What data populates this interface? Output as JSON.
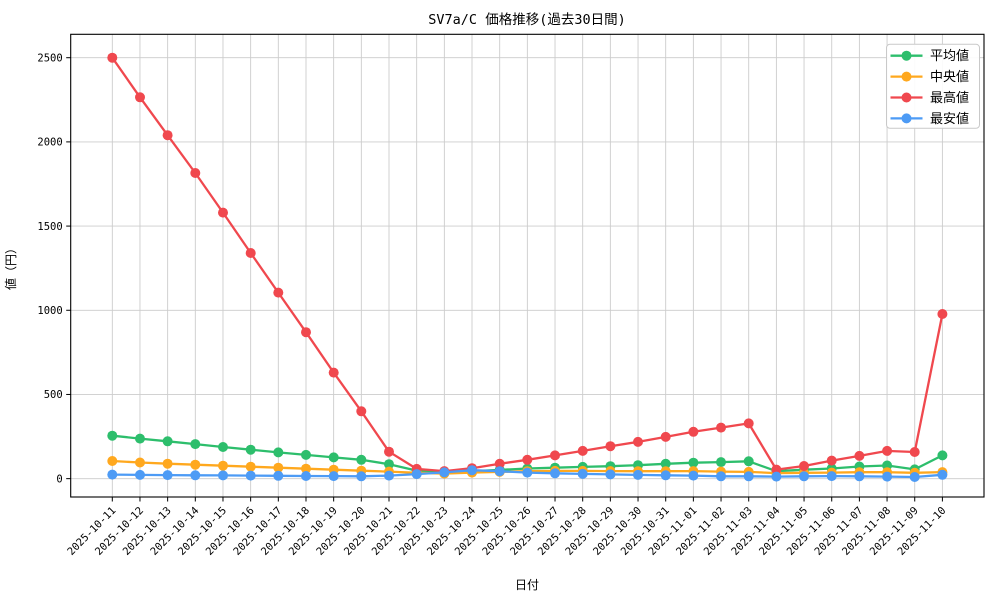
{
  "title": "SV7a/C 価格推移(過去30日間)",
  "chart_data": {
    "type": "line",
    "title": "SV7a/C 価格推移(過去30日間)",
    "xlabel": "日付",
    "ylabel": "値（円）",
    "grid": true,
    "legend_position": "top-right",
    "ylim": [
      -109,
      2639
    ],
    "yticks": [
      0,
      500,
      1000,
      1500,
      2000,
      2500
    ],
    "categories": [
      "2025-10-11",
      "2025-10-12",
      "2025-10-13",
      "2025-10-14",
      "2025-10-15",
      "2025-10-16",
      "2025-10-17",
      "2025-10-18",
      "2025-10-19",
      "2025-10-20",
      "2025-10-21",
      "2025-10-22",
      "2025-10-23",
      "2025-10-24",
      "2025-10-25",
      "2025-10-26",
      "2025-10-27",
      "2025-10-28",
      "2025-10-29",
      "2025-10-30",
      "2025-10-31",
      "2025-11-01",
      "2025-11-02",
      "2025-11-03",
      "2025-11-04",
      "2025-11-05",
      "2025-11-06",
      "2025-11-07",
      "2025-11-08",
      "2025-11-09",
      "2025-11-10"
    ],
    "series": [
      {
        "key": "average",
        "name": "平均値",
        "color": "#2dbe6c",
        "values": [
          255,
          238,
          222,
          205,
          188,
          172,
          156,
          141,
          126,
          112,
          86,
          48,
          35,
          45,
          52,
          60,
          65,
          70,
          74,
          80,
          88,
          95,
          98,
          103,
          44,
          53,
          60,
          72,
          78,
          55,
          138
        ]
      },
      {
        "key": "median",
        "name": "中央値",
        "color": "#ffa81e",
        "values": [
          105,
          96,
          89,
          83,
          77,
          71,
          65,
          59,
          53,
          47,
          42,
          35,
          30,
          36,
          40,
          44,
          46,
          46,
          45,
          44,
          44,
          45,
          42,
          40,
          33,
          35,
          36,
          38,
          38,
          35,
          39
        ]
      },
      {
        "key": "max",
        "name": "最高値",
        "color": "#f0484e",
        "values": [
          2500,
          2265,
          2040,
          1815,
          1580,
          1340,
          1105,
          870,
          630,
          400,
          160,
          58,
          45,
          62,
          88,
          112,
          138,
          165,
          193,
          218,
          248,
          278,
          303,
          328,
          54,
          75,
          107,
          135,
          165,
          158,
          978
        ]
      },
      {
        "key": "min",
        "name": "最安値",
        "color": "#4d9bf5",
        "values": [
          24,
          22,
          21,
          20,
          19,
          18,
          17,
          16,
          15,
          14,
          18,
          27,
          37,
          50,
          44,
          36,
          32,
          28,
          25,
          22,
          20,
          18,
          14,
          14,
          12,
          14,
          15,
          14,
          12,
          10,
          23
        ]
      }
    ],
    "colors": {
      "grid": "#cccccc",
      "spine": "#000000",
      "background": "#ffffff",
      "legend_border": "#c9c9c9"
    }
  }
}
